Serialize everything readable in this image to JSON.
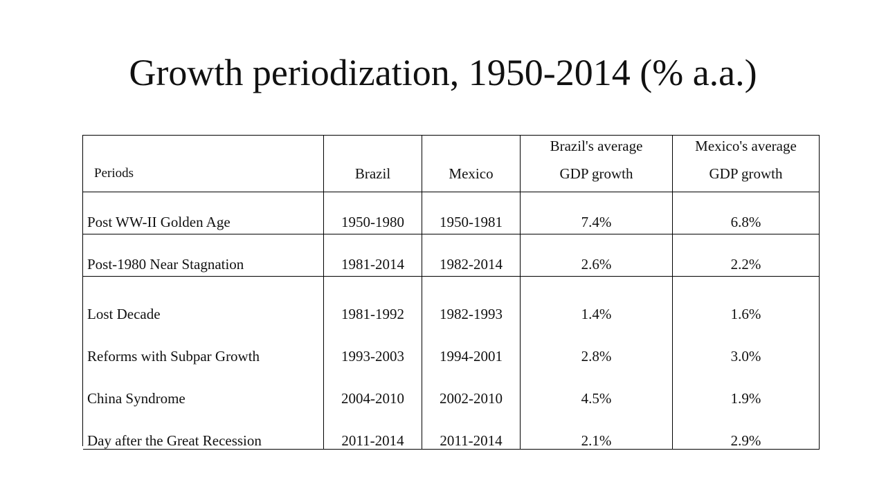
{
  "title": "Growth periodization, 1950-2014 (% a.a.)",
  "table": {
    "headers": {
      "periods": "Periods",
      "brazil": "Brazil",
      "mexico": "Mexico",
      "brazil_avg": [
        "Brazil's average",
        "GDP growth"
      ],
      "mexico_avg": [
        "Mexico's average",
        "GDP growth"
      ]
    },
    "rows": [
      {
        "period": "Post WW-II Golden Age",
        "brazil": "1950-1980",
        "mexico": "1950-1981",
        "brazil_growth": "7.4%",
        "mexico_growth": "6.8%"
      },
      {
        "period": "Post-1980 Near Stagnation",
        "brazil": "1981-2014",
        "mexico": "1982-2014",
        "brazil_growth": "2.6%",
        "mexico_growth": "2.2%"
      },
      {
        "period": "Lost Decade",
        "brazil": "1981-1992",
        "mexico": "1982-1993",
        "brazil_growth": "1.4%",
        "mexico_growth": "1.6%"
      },
      {
        "period": "Reforms with Subpar Growth",
        "brazil": "1993-2003",
        "mexico": "1994-2001",
        "brazil_growth": "2.8%",
        "mexico_growth": "3.0%"
      },
      {
        "period": "China Syndrome",
        "brazil": "2004-2010",
        "mexico": "2002-2010",
        "brazil_growth": "4.5%",
        "mexico_growth": "1.9%"
      },
      {
        "period": "Day after the Great Recession",
        "brazil": "2011-2014",
        "mexico": "2011-2014",
        "brazil_growth": "2.1%",
        "mexico_growth": "2.9%"
      }
    ]
  }
}
